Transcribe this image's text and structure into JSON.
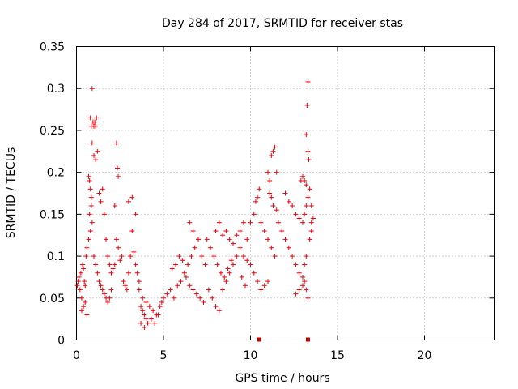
{
  "chart_data": {
    "type": "scatter",
    "title": "Day 284 of 2017, SRMTID for receiver stas",
    "xlabel": "GPS time / hours",
    "ylabel": "SRMTID / TECUs",
    "xlim": [
      0,
      24
    ],
    "ylim": [
      0,
      0.35
    ],
    "x_ticks": [
      0,
      5,
      10,
      15,
      20
    ],
    "y_ticks": [
      0,
      0.05,
      0.1,
      0.15,
      0.2,
      0.25,
      0.3,
      0.35
    ],
    "x_tick_labels": [
      "0",
      "5",
      "10",
      "15",
      "20"
    ],
    "y_tick_labels": [
      "0",
      "0.05",
      "0.1",
      "0.15",
      "0.2",
      "0.25",
      "0.3",
      "0.35"
    ],
    "grid": true,
    "marker_color": "#e8000b",
    "series": [
      {
        "name": "SRMTID",
        "points": [
          [
            0.05,
            0.065
          ],
          [
            0.1,
            0.07
          ],
          [
            0.15,
            0.075
          ],
          [
            0.2,
            0.06
          ],
          [
            0.25,
            0.08
          ],
          [
            0.3,
            0.05
          ],
          [
            0.35,
            0.09
          ],
          [
            0.4,
            0.085
          ],
          [
            0.45,
            0.07
          ],
          [
            0.5,
            0.065
          ],
          [
            0.55,
            0.1
          ],
          [
            0.6,
            0.11
          ],
          [
            0.3,
            0.035
          ],
          [
            0.4,
            0.04
          ],
          [
            0.5,
            0.045
          ],
          [
            0.6,
            0.03
          ],
          [
            0.7,
            0.12
          ],
          [
            0.75,
            0.15
          ],
          [
            0.8,
            0.13
          ],
          [
            0.85,
            0.16
          ],
          [
            0.9,
            0.3
          ],
          [
            0.8,
            0.265
          ],
          [
            0.85,
            0.255
          ],
          [
            0.95,
            0.26
          ],
          [
            1.0,
            0.255
          ],
          [
            1.05,
            0.26
          ],
          [
            1.1,
            0.255
          ],
          [
            1.15,
            0.265
          ],
          [
            0.9,
            0.235
          ],
          [
            1.0,
            0.22
          ],
          [
            1.1,
            0.215
          ],
          [
            1.2,
            0.225
          ],
          [
            0.7,
            0.195
          ],
          [
            0.75,
            0.19
          ],
          [
            0.8,
            0.18
          ],
          [
            0.85,
            0.17
          ],
          [
            0.9,
            0.14
          ],
          [
            1.0,
            0.1
          ],
          [
            1.1,
            0.09
          ],
          [
            1.2,
            0.08
          ],
          [
            1.3,
            0.07
          ],
          [
            1.4,
            0.065
          ],
          [
            1.5,
            0.06
          ],
          [
            1.6,
            0.055
          ],
          [
            1.7,
            0.05
          ],
          [
            1.8,
            0.045
          ],
          [
            1.9,
            0.05
          ],
          [
            2.0,
            0.06
          ],
          [
            1.3,
            0.175
          ],
          [
            1.4,
            0.165
          ],
          [
            1.5,
            0.18
          ],
          [
            1.6,
            0.15
          ],
          [
            1.7,
            0.12
          ],
          [
            1.8,
            0.1
          ],
          [
            1.9,
            0.09
          ],
          [
            2.0,
            0.08
          ],
          [
            2.1,
            0.085
          ],
          [
            2.2,
            0.09
          ],
          [
            2.3,
            0.235
          ],
          [
            2.35,
            0.205
          ],
          [
            2.4,
            0.195
          ],
          [
            2.2,
            0.16
          ],
          [
            2.3,
            0.12
          ],
          [
            2.4,
            0.11
          ],
          [
            2.5,
            0.095
          ],
          [
            2.6,
            0.1
          ],
          [
            2.7,
            0.07
          ],
          [
            2.8,
            0.065
          ],
          [
            2.9,
            0.06
          ],
          [
            3.0,
            0.08
          ],
          [
            3.1,
            0.1
          ],
          [
            3.2,
            0.13
          ],
          [
            3.3,
            0.105
          ],
          [
            3.4,
            0.09
          ],
          [
            3.5,
            0.08
          ],
          [
            3.6,
            0.06
          ],
          [
            3.7,
            0.04
          ],
          [
            3.8,
            0.035
          ],
          [
            3.9,
            0.03
          ],
          [
            4.0,
            0.025
          ],
          [
            3.0,
            0.165
          ],
          [
            3.2,
            0.17
          ],
          [
            3.4,
            0.15
          ],
          [
            3.6,
            0.07
          ],
          [
            3.8,
            0.05
          ],
          [
            4.0,
            0.045
          ],
          [
            4.2,
            0.04
          ],
          [
            4.4,
            0.035
          ],
          [
            4.6,
            0.03
          ],
          [
            4.8,
            0.04
          ],
          [
            3.7,
            0.02
          ],
          [
            3.9,
            0.015
          ],
          [
            4.1,
            0.02
          ],
          [
            4.3,
            0.025
          ],
          [
            4.5,
            0.02
          ],
          [
            4.7,
            0.03
          ],
          [
            4.9,
            0.045
          ],
          [
            5.0,
            0.05
          ],
          [
            5.2,
            0.055
          ],
          [
            5.4,
            0.06
          ],
          [
            5.6,
            0.05
          ],
          [
            5.8,
            0.065
          ],
          [
            6.0,
            0.07
          ],
          [
            6.2,
            0.08
          ],
          [
            6.4,
            0.09
          ],
          [
            6.6,
            0.1
          ],
          [
            6.8,
            0.11
          ],
          [
            7.0,
            0.12
          ],
          [
            7.2,
            0.1
          ],
          [
            7.4,
            0.09
          ],
          [
            5.5,
            0.085
          ],
          [
            5.7,
            0.09
          ],
          [
            5.9,
            0.1
          ],
          [
            6.1,
            0.095
          ],
          [
            6.3,
            0.075
          ],
          [
            6.5,
            0.065
          ],
          [
            6.7,
            0.06
          ],
          [
            6.9,
            0.055
          ],
          [
            7.1,
            0.05
          ],
          [
            7.3,
            0.045
          ],
          [
            6.5,
            0.14
          ],
          [
            6.7,
            0.13
          ],
          [
            7.5,
            0.12
          ],
          [
            7.7,
            0.11
          ],
          [
            7.9,
            0.1
          ],
          [
            8.1,
            0.09
          ],
          [
            8.3,
            0.08
          ],
          [
            8.5,
            0.075
          ],
          [
            8.7,
            0.085
          ],
          [
            8.9,
            0.095
          ],
          [
            7.6,
            0.06
          ],
          [
            7.8,
            0.05
          ],
          [
            8.0,
            0.04
          ],
          [
            8.2,
            0.035
          ],
          [
            8.4,
            0.06
          ],
          [
            8.6,
            0.07
          ],
          [
            8.8,
            0.08
          ],
          [
            9.0,
            0.09
          ],
          [
            9.2,
            0.1
          ],
          [
            9.4,
            0.11
          ],
          [
            8.0,
            0.13
          ],
          [
            8.2,
            0.14
          ],
          [
            8.4,
            0.125
          ],
          [
            8.6,
            0.13
          ],
          [
            8.8,
            0.12
          ],
          [
            9.0,
            0.115
          ],
          [
            9.2,
            0.125
          ],
          [
            9.4,
            0.13
          ],
          [
            9.6,
            0.14
          ],
          [
            9.8,
            0.12
          ],
          [
            9.6,
            0.1
          ],
          [
            9.8,
            0.095
          ],
          [
            10.0,
            0.09
          ],
          [
            10.2,
            0.08
          ],
          [
            10.4,
            0.07
          ],
          [
            10.6,
            0.06
          ],
          [
            10.8,
            0.065
          ],
          [
            11.0,
            0.07
          ],
          [
            9.5,
            0.075
          ],
          [
            9.7,
            0.065
          ],
          [
            10.0,
            0.14
          ],
          [
            10.2,
            0.15
          ],
          [
            10.3,
            0.165
          ],
          [
            10.4,
            0.17
          ],
          [
            10.5,
            0.18
          ],
          [
            10.6,
            0.14
          ],
          [
            10.8,
            0.13
          ],
          [
            11.0,
            0.12
          ],
          [
            11.2,
            0.11
          ],
          [
            11.4,
            0.1
          ],
          [
            11.0,
            0.2
          ],
          [
            11.1,
            0.19
          ],
          [
            11.2,
            0.22
          ],
          [
            11.3,
            0.225
          ],
          [
            11.4,
            0.23
          ],
          [
            11.5,
            0.2
          ],
          [
            11.1,
            0.175
          ],
          [
            11.2,
            0.17
          ],
          [
            11.3,
            0.16
          ],
          [
            11.5,
            0.155
          ],
          [
            11.6,
            0.14
          ],
          [
            11.8,
            0.13
          ],
          [
            12.0,
            0.12
          ],
          [
            12.2,
            0.11
          ],
          [
            12.4,
            0.1
          ],
          [
            12.6,
            0.09
          ],
          [
            12.8,
            0.08
          ],
          [
            13.0,
            0.075
          ],
          [
            13.1,
            0.09
          ],
          [
            13.2,
            0.1
          ],
          [
            12.0,
            0.175
          ],
          [
            12.2,
            0.165
          ],
          [
            12.4,
            0.16
          ],
          [
            12.6,
            0.15
          ],
          [
            12.8,
            0.145
          ],
          [
            13.0,
            0.14
          ],
          [
            13.1,
            0.15
          ],
          [
            13.2,
            0.16
          ],
          [
            13.3,
            0.17
          ],
          [
            13.4,
            0.18
          ],
          [
            12.9,
            0.19
          ],
          [
            13.0,
            0.195
          ],
          [
            13.1,
            0.19
          ],
          [
            13.2,
            0.185
          ],
          [
            13.25,
            0.28
          ],
          [
            13.3,
            0.308
          ],
          [
            13.2,
            0.245
          ],
          [
            13.3,
            0.225
          ],
          [
            13.35,
            0.215
          ],
          [
            13.4,
            0.12
          ],
          [
            13.1,
            0.07
          ],
          [
            13.2,
            0.06
          ],
          [
            13.3,
            0.05
          ],
          [
            13.0,
            0.065
          ],
          [
            12.8,
            0.06
          ],
          [
            12.6,
            0.055
          ],
          [
            13.5,
            0.13
          ],
          [
            13.5,
            0.14
          ],
          [
            13.5,
            0.16
          ],
          [
            13.6,
            0.145
          ]
        ]
      }
    ],
    "markers_on_axis": [
      10.5,
      13.3
    ]
  }
}
